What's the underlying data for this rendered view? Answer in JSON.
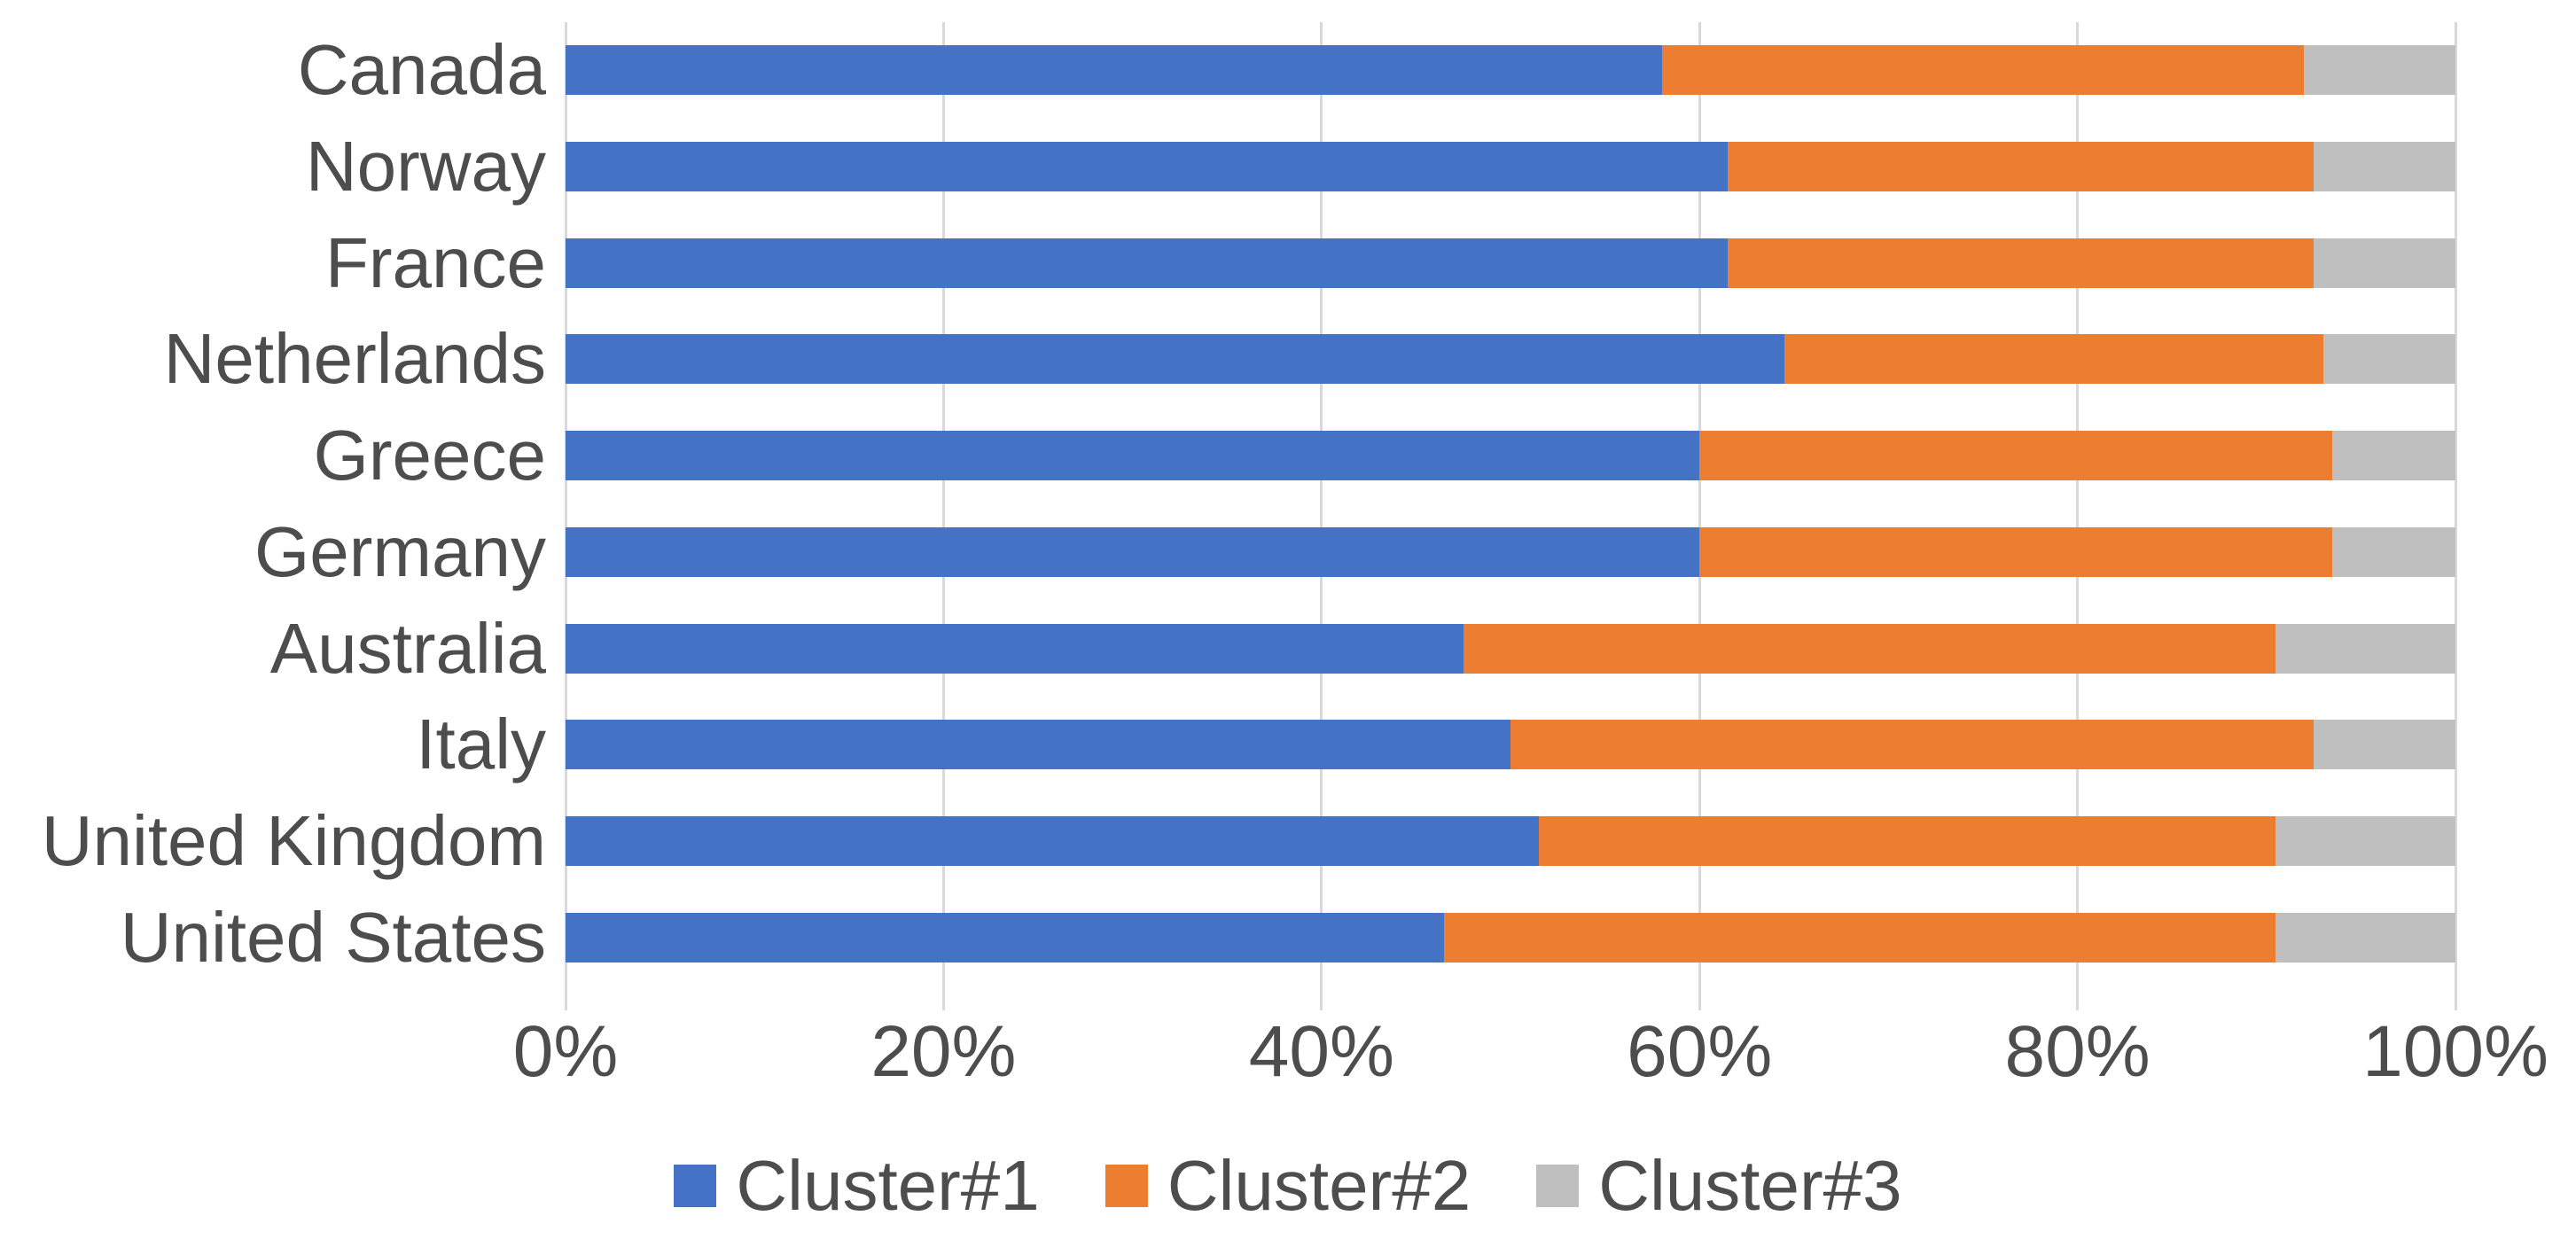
{
  "chart_data": {
    "type": "bar",
    "orientation": "horizontal",
    "stacked": true,
    "stacking": "percent",
    "title": "",
    "xlabel": "",
    "ylabel": "",
    "categories": [
      "Canada",
      "Norway",
      "France",
      "Netherlands",
      "Greece",
      "Germany",
      "Australia",
      "Italy",
      "United Kingdom",
      "United States"
    ],
    "series": [
      {
        "name": "Cluster#1",
        "color": "#4472C4",
        "values": [
          58,
          61.5,
          61.5,
          64.5,
          60,
          60,
          47.5,
          50,
          51.5,
          46.5
        ]
      },
      {
        "name": "Cluster#2",
        "color": "#ED7D31",
        "values": [
          34,
          31,
          31,
          28.5,
          33.5,
          33.5,
          43,
          42.5,
          39,
          44
        ]
      },
      {
        "name": "Cluster#3",
        "color": "#BFBFBF",
        "values": [
          8,
          7.5,
          7.5,
          7,
          6.5,
          6.5,
          9.5,
          7.5,
          9.5,
          9.5
        ]
      }
    ],
    "x_axis": {
      "range": [
        0,
        100
      ],
      "tick_values": [
        0,
        20,
        40,
        60,
        80,
        100
      ],
      "tick_labels": [
        "0%",
        "20%",
        "40%",
        "60%",
        "80%",
        "100%"
      ]
    },
    "grid": true,
    "gridline_color": "#D9D9D9",
    "axis_text_color": "#4d4d4d",
    "legend_position": "bottom",
    "legend_labels": [
      "Cluster#1",
      "Cluster#2",
      "Cluster#3"
    ]
  }
}
